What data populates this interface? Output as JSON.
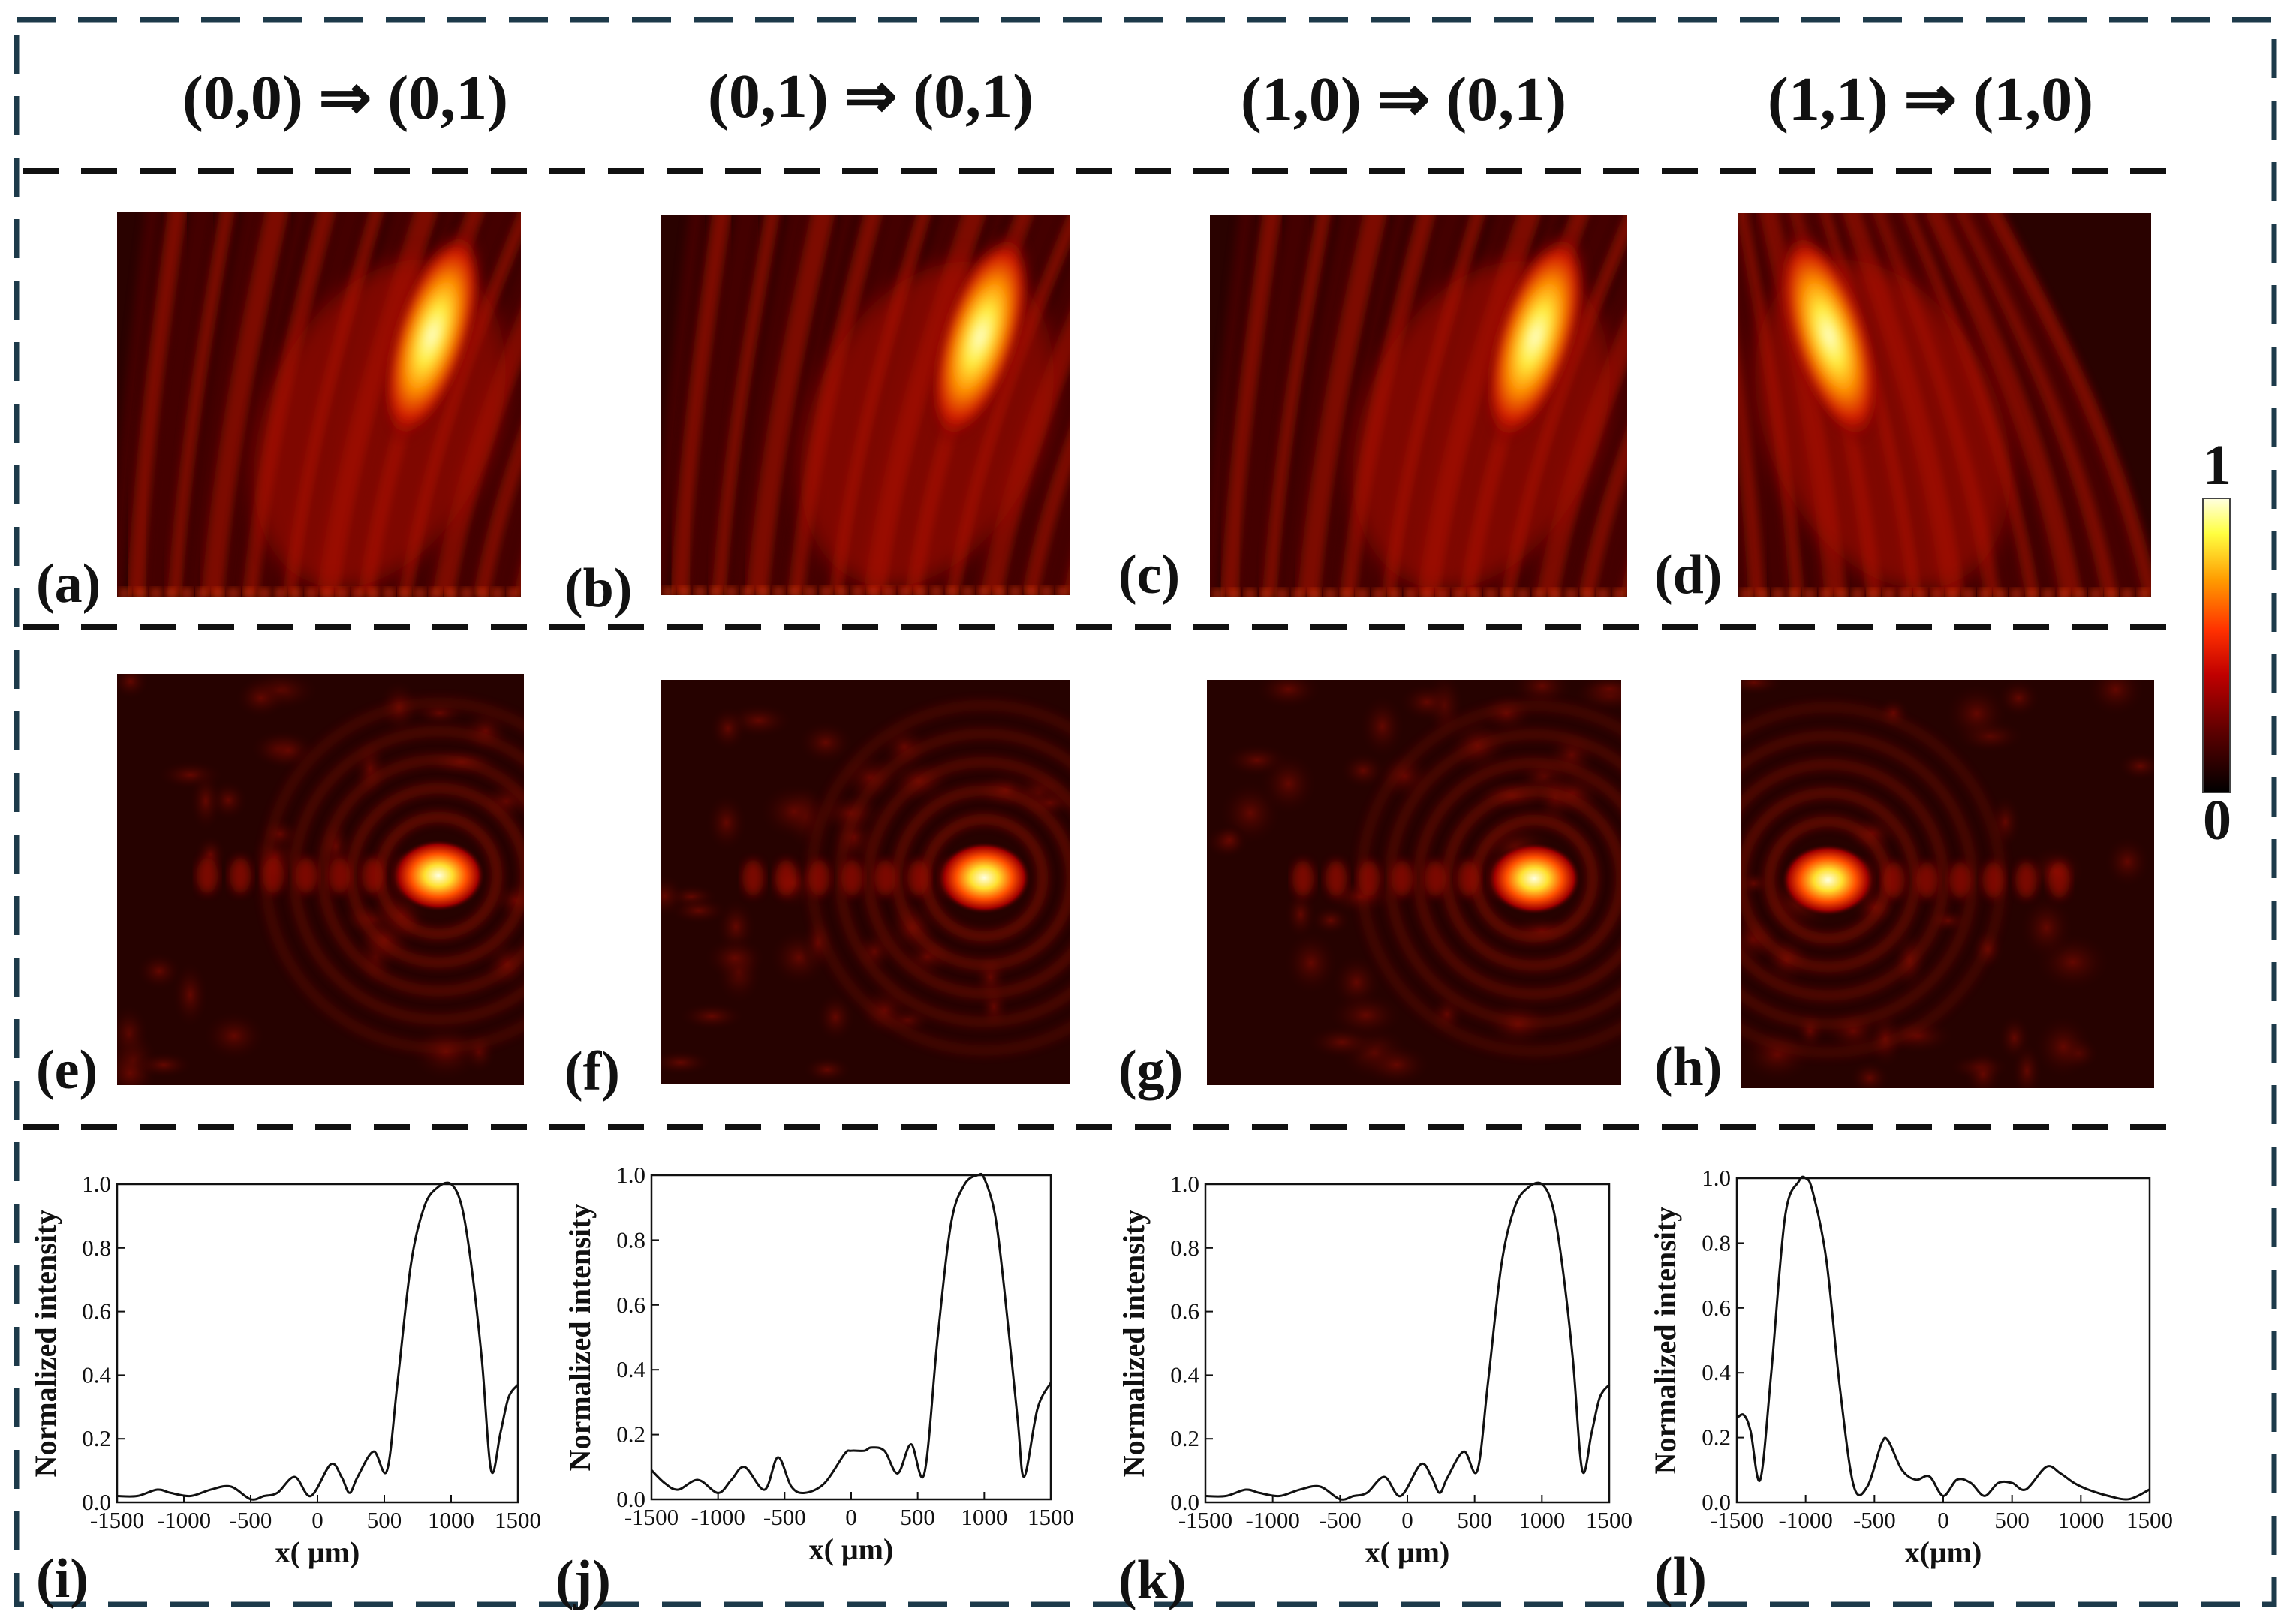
{
  "headers": [
    "(0,0) ⇒ (0,1)",
    "(0,1) ⇒ (0,1)",
    "(1,0) ⇒ (0,1)",
    "(1,1) ⇒ (1,0)"
  ],
  "panel_labels": {
    "row1": [
      "(a)",
      "(b)",
      "(c)",
      "(d)"
    ],
    "row2": [
      "(e)",
      "(f)",
      "(g)",
      "(h)"
    ],
    "row3": [
      "(i)",
      "(j)",
      "(k)",
      "(l)"
    ]
  },
  "colorbar": {
    "max_label": "1",
    "min_label": "0",
    "colors": [
      "#000000",
      "#5a0000",
      "#c00000",
      "#ff3000",
      "#ff9a00",
      "#ffff40",
      "#ffffe0"
    ]
  },
  "maps": {
    "propagation_peak_side": [
      "right",
      "right",
      "right",
      "left"
    ],
    "focal_spot_side": [
      "right",
      "right",
      "right",
      "left"
    ]
  },
  "chart_data": [
    {
      "type": "line",
      "panel": "(i)",
      "ylabel": "Normalized intensity",
      "xlabel": "x( μm)",
      "xlim": [
        -1500,
        1500
      ],
      "ylim": [
        0,
        1.0
      ],
      "xticks": [
        -1500,
        -1000,
        -500,
        0,
        500,
        1000,
        1500
      ],
      "yticks": [
        "0.0",
        "0.2",
        "0.4",
        "0.6",
        "0.8",
        "1.0"
      ],
      "series": [
        {
          "x": [
            -1500,
            -1350,
            -1200,
            -1100,
            -950,
            -800,
            -650,
            -500,
            -400,
            -300,
            -170,
            -50,
            100,
            180,
            240,
            300,
            420,
            520,
            600,
            700,
            800,
            900,
            1000,
            1080,
            1150,
            1230,
            1300,
            1370,
            1430,
            1500
          ],
          "y": [
            0.02,
            0.02,
            0.04,
            0.03,
            0.02,
            0.04,
            0.05,
            0.01,
            0.02,
            0.03,
            0.08,
            0.02,
            0.12,
            0.08,
            0.03,
            0.08,
            0.16,
            0.1,
            0.38,
            0.75,
            0.93,
            0.99,
            1.0,
            0.93,
            0.75,
            0.45,
            0.1,
            0.22,
            0.33,
            0.37
          ]
        }
      ]
    },
    {
      "type": "line",
      "panel": "(j)",
      "ylabel": "Normalized intensity",
      "xlabel": "x( μm)",
      "xlim": [
        -1500,
        1500
      ],
      "ylim": [
        0,
        1.0
      ],
      "xticks": [
        -1500,
        -1000,
        -500,
        0,
        500,
        1000,
        1500
      ],
      "yticks": [
        "0.0",
        "0.2",
        "0.4",
        "0.6",
        "0.8",
        "1.0"
      ],
      "series": [
        {
          "x": [
            -1500,
            -1400,
            -1300,
            -1150,
            -1000,
            -900,
            -800,
            -650,
            -550,
            -450,
            -350,
            -200,
            -50,
            0,
            100,
            150,
            250,
            350,
            450,
            550,
            650,
            750,
            850,
            950,
            1000,
            1080,
            1150,
            1250,
            1300,
            1400,
            1500
          ],
          "y": [
            0.09,
            0.05,
            0.03,
            0.06,
            0.02,
            0.06,
            0.1,
            0.03,
            0.13,
            0.04,
            0.02,
            0.05,
            0.14,
            0.15,
            0.15,
            0.16,
            0.15,
            0.08,
            0.17,
            0.08,
            0.5,
            0.85,
            0.97,
            1.0,
            0.99,
            0.88,
            0.65,
            0.25,
            0.07,
            0.28,
            0.36
          ]
        }
      ]
    },
    {
      "type": "line",
      "panel": "(k)",
      "ylabel": "Normalized intensity",
      "xlabel": "x( μm)",
      "xlim": [
        -1500,
        1500
      ],
      "ylim": [
        0,
        1.0
      ],
      "xticks": [
        -1500,
        -1000,
        -500,
        0,
        500,
        1000,
        1500
      ],
      "yticks": [
        "0.0",
        "0.2",
        "0.4",
        "0.6",
        "0.8",
        "1.0"
      ],
      "series": [
        {
          "x": [
            -1500,
            -1350,
            -1200,
            -1100,
            -950,
            -800,
            -650,
            -500,
            -400,
            -300,
            -170,
            -50,
            100,
            180,
            240,
            300,
            420,
            520,
            600,
            700,
            800,
            900,
            1000,
            1080,
            1150,
            1230,
            1300,
            1370,
            1430,
            1500
          ],
          "y": [
            0.02,
            0.02,
            0.04,
            0.03,
            0.02,
            0.04,
            0.05,
            0.01,
            0.02,
            0.03,
            0.08,
            0.02,
            0.12,
            0.08,
            0.03,
            0.08,
            0.16,
            0.1,
            0.38,
            0.75,
            0.93,
            0.99,
            1.0,
            0.93,
            0.75,
            0.45,
            0.1,
            0.22,
            0.33,
            0.37
          ]
        }
      ]
    },
    {
      "type": "line",
      "panel": "(l)",
      "ylabel": "Normalized intensity",
      "xlabel": "x(μm)",
      "xlim": [
        -1500,
        1500
      ],
      "ylim": [
        0,
        1.0
      ],
      "xticks": [
        -1500,
        -1000,
        -500,
        0,
        500,
        1000,
        1500
      ],
      "yticks": [
        "0.0",
        "0.2",
        "0.4",
        "0.6",
        "0.8",
        "1.0"
      ],
      "series": [
        {
          "x": [
            -1500,
            -1450,
            -1400,
            -1330,
            -1250,
            -1150,
            -1050,
            -1000,
            -950,
            -850,
            -750,
            -650,
            -550,
            -450,
            -400,
            -300,
            -200,
            -100,
            0,
            100,
            200,
            300,
            400,
            500,
            600,
            750,
            850,
            950,
            1050,
            1200,
            1350,
            1500
          ],
          "y": [
            0.26,
            0.27,
            0.22,
            0.07,
            0.4,
            0.88,
            0.99,
            1.0,
            0.96,
            0.75,
            0.35,
            0.05,
            0.05,
            0.18,
            0.19,
            0.1,
            0.07,
            0.08,
            0.02,
            0.07,
            0.06,
            0.02,
            0.06,
            0.06,
            0.04,
            0.11,
            0.09,
            0.06,
            0.04,
            0.02,
            0.01,
            0.04
          ]
        }
      ]
    }
  ]
}
